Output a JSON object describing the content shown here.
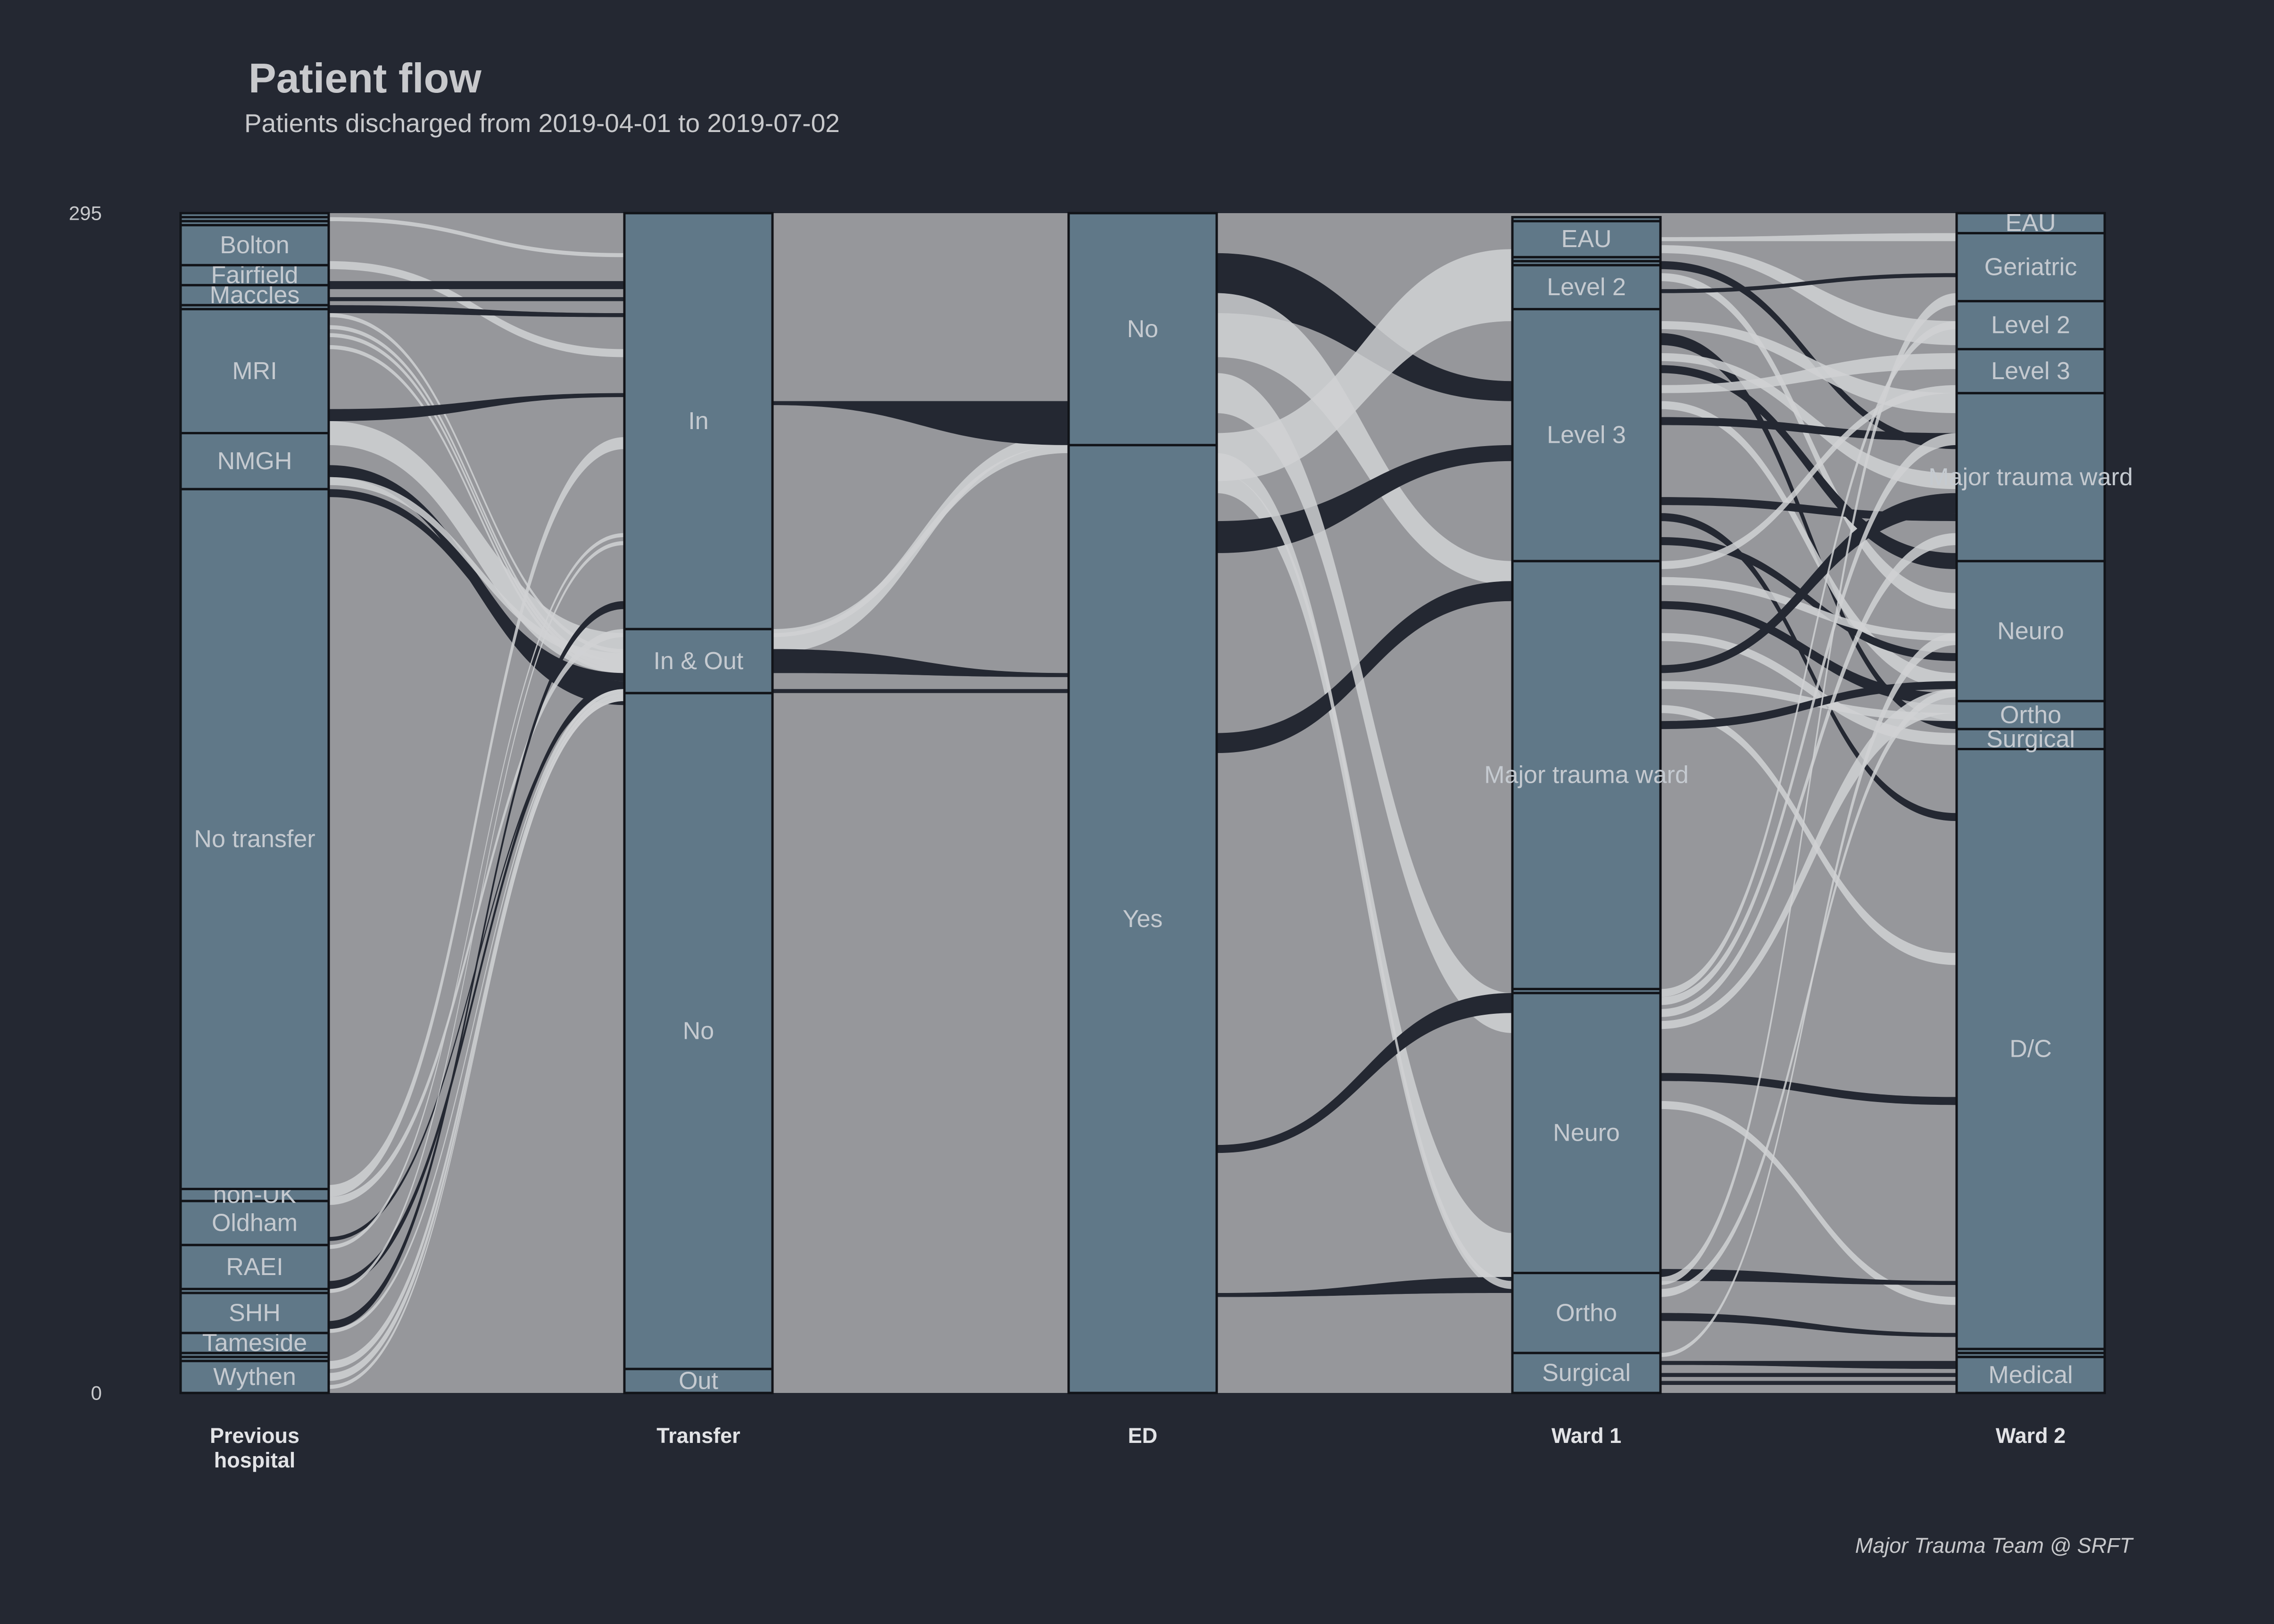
{
  "title": "Patient flow",
  "subtitle": "Patients discharged from 2019-04-01 to 2019-07-02",
  "caption": "Major Trauma Team @ SRFT",
  "colors": {
    "background": "#242832",
    "panel": "#96979b",
    "node_fill": "#607888",
    "node_stroke": "#111318",
    "flow_light": "#d0d1d4",
    "flow_dark": "#242832",
    "text": "#c8c9cc"
  },
  "chart_data": {
    "type": "alluvial",
    "ylim": [
      0,
      295
    ],
    "y_ticks": [
      "0",
      "295"
    ],
    "axes": [
      {
        "key": "prev",
        "label_lines": [
          "Previous",
          "hospital"
        ],
        "strata": [
          {
            "name": "Wythen",
            "value": 8
          },
          {
            "name": "",
            "value": 1
          },
          {
            "name": "",
            "value": 1
          },
          {
            "name": "Tameside",
            "value": 5
          },
          {
            "name": "SHH",
            "value": 10
          },
          {
            "name": "",
            "value": 1
          },
          {
            "name": "RAEI",
            "value": 11
          },
          {
            "name": "Oldham",
            "value": 11
          },
          {
            "name": "non-UK",
            "value": 3
          },
          {
            "name": "No transfer",
            "value": 175
          },
          {
            "name": "NMGH",
            "value": 14
          },
          {
            "name": "MRI",
            "value": 31
          },
          {
            "name": "",
            "value": 1
          },
          {
            "name": "Maccles",
            "value": 5
          },
          {
            "name": "Fairfield",
            "value": 5
          },
          {
            "name": "Bolton",
            "value": 10
          },
          {
            "name": "",
            "value": 1
          },
          {
            "name": "",
            "value": 1
          },
          {
            "name": "",
            "value": 1
          }
        ]
      },
      {
        "key": "transfer",
        "label_lines": [
          "Transfer"
        ],
        "strata": [
          {
            "name": "Out",
            "value": 6
          },
          {
            "name": "No",
            "value": 169
          },
          {
            "name": "In & Out",
            "value": 16
          },
          {
            "name": "In",
            "value": 104
          }
        ]
      },
      {
        "key": "ed",
        "label_lines": [
          "ED"
        ],
        "strata": [
          {
            "name": "Yes",
            "value": 237
          },
          {
            "name": "No",
            "value": 58
          }
        ]
      },
      {
        "key": "ward1",
        "label_lines": [
          "Ward 1"
        ],
        "strata": [
          {
            "name": "Surgical",
            "value": 10
          },
          {
            "name": "Ortho",
            "value": 20
          },
          {
            "name": "Neuro",
            "value": 70
          },
          {
            "name": "",
            "value": 1
          },
          {
            "name": "Major trauma ward",
            "value": 107
          },
          {
            "name": "Level 3",
            "value": 63
          },
          {
            "name": "Level 2",
            "value": 11
          },
          {
            "name": "",
            "value": 1
          },
          {
            "name": "",
            "value": 1
          },
          {
            "name": "EAU",
            "value": 9
          },
          {
            "name": "",
            "value": 1
          }
        ]
      },
      {
        "key": "ward2",
        "label_lines": [
          "Ward 2"
        ],
        "strata": [
          {
            "name": "Medical",
            "value": 9
          },
          {
            "name": "",
            "value": 1
          },
          {
            "name": "",
            "value": 1
          },
          {
            "name": "D/C",
            "value": 150
          },
          {
            "name": "Surgical",
            "value": 5
          },
          {
            "name": "Ortho",
            "value": 7
          },
          {
            "name": "Neuro",
            "value": 35
          },
          {
            "name": "Major trauma ward",
            "value": 42
          },
          {
            "name": "Level 3",
            "value": 11
          },
          {
            "name": "Level 2",
            "value": 12
          },
          {
            "name": "Geriatric",
            "value": 17
          },
          {
            "name": "EAU",
            "value": 5
          }
        ]
      }
    ],
    "flows": [
      {
        "axis": 0,
        "from_y": [
          294,
          293
        ],
        "to_y": [
          285,
          284
        ],
        "color": "light"
      },
      {
        "axis": 0,
        "from_y": [
          283,
          281
        ],
        "to_y": [
          261,
          259
        ],
        "color": "light"
      },
      {
        "axis": 0,
        "from_y": [
          278,
          276
        ],
        "to_y": [
          278,
          276
        ],
        "color": "dark"
      },
      {
        "axis": 0,
        "from_y": [
          274,
          273
        ],
        "to_y": [
          274,
          273
        ],
        "color": "dark"
      },
      {
        "axis": 0,
        "from_y": [
          272,
          270
        ],
        "to_y": [
          270,
          269
        ],
        "color": "dark"
      },
      {
        "axis": 0,
        "from_y": [
          270,
          269
        ],
        "to_y": [
          186,
          185
        ],
        "color": "light"
      },
      {
        "axis": 0,
        "from_y": [
          267,
          266
        ],
        "to_y": [
          183,
          182
        ],
        "color": "light"
      },
      {
        "axis": 0,
        "from_y": [
          265,
          264
        ],
        "to_y": [
          182,
          181
        ],
        "color": "light"
      },
      {
        "axis": 0,
        "from_y": [
          262,
          261
        ],
        "to_y": [
          181,
          180
        ],
        "color": "light"
      },
      {
        "axis": 0,
        "from_y": [
          246,
          243
        ],
        "to_y": [
          250,
          249
        ],
        "color": "dark"
      },
      {
        "axis": 0,
        "from_y": [
          243,
          237
        ],
        "to_y": [
          190,
          180
        ],
        "color": "light"
      },
      {
        "axis": 0,
        "from_y": [
          232,
          229
        ],
        "to_y": [
          178,
          172
        ],
        "color": "dark"
      },
      {
        "axis": 0,
        "from_y": [
          229,
          227
        ],
        "to_y": [
          185,
          183
        ],
        "color": "light"
      },
      {
        "axis": 0,
        "from_y": [
          226,
          224
        ],
        "to_y": [
          180,
          178
        ],
        "color": "dark"
      },
      {
        "axis": 0,
        "from_y": [
          52,
          49
        ],
        "to_y": [
          239,
          236
        ],
        "color": "light"
      },
      {
        "axis": 0,
        "from_y": [
          49,
          47
        ],
        "to_y": [
          191,
          189
        ],
        "color": "light"
      },
      {
        "axis": 0,
        "from_y": [
          39,
          38
        ],
        "to_y": [
          176,
          175
        ],
        "color": "dark"
      },
      {
        "axis": 0,
        "from_y": [
          37,
          36
        ],
        "to_y": [
          215,
          214
        ],
        "color": "light"
      },
      {
        "axis": 0,
        "from_y": [
          28,
          26
        ],
        "to_y": [
          178,
          176
        ],
        "color": "dark"
      },
      {
        "axis": 0,
        "from_y": [
          26,
          25
        ],
        "to_y": [
          213,
          212
        ],
        "color": "light"
      },
      {
        "axis": 0,
        "from_y": [
          18,
          16
        ],
        "to_y": [
          198,
          196
        ],
        "color": "dark"
      },
      {
        "axis": 0,
        "from_y": [
          16,
          15
        ],
        "to_y": [
          176,
          175
        ],
        "color": "light"
      },
      {
        "axis": 0,
        "from_y": [
          8,
          6
        ],
        "to_y": [
          176,
          174
        ],
        "color": "light"
      },
      {
        "axis": 0,
        "from_y": [
          5,
          3
        ],
        "to_y": [
          175,
          173
        ],
        "color": "light"
      },
      {
        "axis": 0,
        "from_y": [
          2,
          1
        ],
        "to_y": [
          174,
          173
        ],
        "color": "light"
      },
      {
        "axis": 1,
        "from_y": [
          191,
          189
        ],
        "to_y": [
          237,
          235
        ],
        "color": "light"
      },
      {
        "axis": 1,
        "from_y": [
          190,
          185
        ],
        "to_y": [
          240,
          237
        ],
        "color": "light"
      },
      {
        "axis": 1,
        "from_y": [
          186,
          180
        ],
        "to_y": [
          180,
          179
        ],
        "color": "dark"
      },
      {
        "axis": 1,
        "from_y": [
          176,
          175
        ],
        "to_y": [
          176,
          175
        ],
        "color": "dark"
      },
      {
        "axis": 1,
        "from_y": [
          248,
          247
        ],
        "to_y": [
          248,
          237
        ],
        "color": "dark"
      },
      {
        "axis": 2,
        "from_y": [
          285,
          270
        ],
        "to_y": [
          253,
          248
        ],
        "color": "dark"
      },
      {
        "axis": 2,
        "from_y": [
          275,
          259
        ],
        "to_y": [
          208,
          202
        ],
        "color": "light"
      },
      {
        "axis": 2,
        "from_y": [
          240,
          228
        ],
        "to_y": [
          286,
          268
        ],
        "color": "light"
      },
      {
        "axis": 2,
        "from_y": [
          230,
          225
        ],
        "to_y": [
          40,
          25
        ],
        "color": "light"
      },
      {
        "axis": 2,
        "from_y": [
          218,
          210
        ],
        "to_y": [
          237,
          233
        ],
        "color": "dark"
      },
      {
        "axis": 2,
        "from_y": [
          165,
          160
        ],
        "to_y": [
          203,
          198
        ],
        "color": "dark"
      },
      {
        "axis": 2,
        "from_y": [
          255,
          245
        ],
        "to_y": [
          100,
          90
        ],
        "color": "light"
      },
      {
        "axis": 2,
        "from_y": [
          62,
          60
        ],
        "to_y": [
          100,
          95
        ],
        "color": "dark"
      },
      {
        "axis": 2,
        "from_y": [
          25,
          24
        ],
        "to_y": [
          29,
          25
        ],
        "color": "dark"
      },
      {
        "axis": 2,
        "from_y": [
          235,
          230
        ],
        "to_y": [
          28,
          26
        ],
        "color": "light"
      },
      {
        "axis": 3,
        "from_y": [
          289,
          288
        ],
        "to_y": [
          290,
          288
        ],
        "color": "light"
      },
      {
        "axis": 3,
        "from_y": [
          287,
          285
        ],
        "to_y": [
          268,
          262
        ],
        "color": "light"
      },
      {
        "axis": 3,
        "from_y": [
          283,
          281
        ],
        "to_y": [
          238,
          236
        ],
        "color": "dark"
      },
      {
        "axis": 3,
        "from_y": [
          280,
          278
        ],
        "to_y": [
          200,
          196
        ],
        "color": "light"
      },
      {
        "axis": 3,
        "from_y": [
          276,
          275
        ],
        "to_y": [
          280,
          279
        ],
        "color": "dark"
      },
      {
        "axis": 3,
        "from_y": [
          268,
          266
        ],
        "to_y": [
          250,
          245
        ],
        "color": "light"
      },
      {
        "axis": 3,
        "from_y": [
          265,
          262
        ],
        "to_y": [
          168,
          166
        ],
        "color": "dark"
      },
      {
        "axis": 3,
        "from_y": [
          260,
          258
        ],
        "to_y": [
          230,
          226
        ],
        "color": "light"
      },
      {
        "axis": 3,
        "from_y": [
          257,
          255
        ],
        "to_y": [
          210,
          206
        ],
        "color": "dark"
      },
      {
        "axis": 3,
        "from_y": [
          252,
          250
        ],
        "to_y": [
          260,
          256
        ],
        "color": "light"
      },
      {
        "axis": 3,
        "from_y": [
          248,
          246
        ],
        "to_y": [
          180,
          176
        ],
        "color": "light"
      },
      {
        "axis": 3,
        "from_y": [
          244,
          242
        ],
        "to_y": [
          240,
          238
        ],
        "color": "dark"
      },
      {
        "axis": 3,
        "from_y": [
          224,
          222
        ],
        "to_y": [
          220,
          218
        ],
        "color": "dark"
      },
      {
        "axis": 3,
        "from_y": [
          220,
          218
        ],
        "to_y": [
          145,
          143
        ],
        "color": "dark"
      },
      {
        "axis": 3,
        "from_y": [
          214,
          212
        ],
        "to_y": [
          185,
          183
        ],
        "color": "dark"
      },
      {
        "axis": 3,
        "from_y": [
          208,
          206
        ],
        "to_y": [
          252,
          250
        ],
        "color": "light"
      },
      {
        "axis": 3,
        "from_y": [
          204,
          202
        ],
        "to_y": [
          190,
          188
        ],
        "color": "light"
      },
      {
        "axis": 3,
        "from_y": [
          198,
          196
        ],
        "to_y": [
          175,
          172
        ],
        "color": "dark"
      },
      {
        "axis": 3,
        "from_y": [
          190,
          188
        ],
        "to_y": [
          165,
          162
        ],
        "color": "light"
      },
      {
        "axis": 3,
        "from_y": [
          182,
          180
        ],
        "to_y": [
          225,
          220
        ],
        "color": "dark"
      },
      {
        "axis": 3,
        "from_y": [
          178,
          176
        ],
        "to_y": [
          170,
          168
        ],
        "color": "light"
      },
      {
        "axis": 3,
        "from_y": [
          172,
          170
        ],
        "to_y": [
          110,
          107
        ],
        "color": "light"
      },
      {
        "axis": 3,
        "from_y": [
          168,
          166
        ],
        "to_y": [
          178,
          176
        ],
        "color": "dark"
      },
      {
        "axis": 3,
        "from_y": [
          101,
          99
        ],
        "to_y": [
          268,
          266
        ],
        "color": "light"
      },
      {
        "axis": 3,
        "from_y": [
          99,
          97
        ],
        "to_y": [
          240,
          237
        ],
        "color": "light"
      },
      {
        "axis": 3,
        "from_y": [
          96,
          94
        ],
        "to_y": [
          215,
          212
        ],
        "color": "light"
      },
      {
        "axis": 3,
        "from_y": [
          93,
          91
        ],
        "to_y": [
          176,
          170
        ],
        "color": "light"
      },
      {
        "axis": 3,
        "from_y": [
          80,
          78
        ],
        "to_y": [
          74,
          72
        ],
        "color": "dark"
      },
      {
        "axis": 3,
        "from_y": [
          73,
          71
        ],
        "to_y": [
          24,
          22
        ],
        "color": "light"
      },
      {
        "axis": 3,
        "from_y": [
          31,
          28
        ],
        "to_y": [
          28,
          27
        ],
        "color": "dark"
      },
      {
        "axis": 3,
        "from_y": [
          29,
          27
        ],
        "to_y": [
          275,
          272
        ],
        "color": "light"
      },
      {
        "axis": 3,
        "from_y": [
          26,
          24
        ],
        "to_y": [
          176,
          174
        ],
        "color": "light"
      },
      {
        "axis": 3,
        "from_y": [
          20,
          18
        ],
        "to_y": [
          15,
          14
        ],
        "color": "dark"
      },
      {
        "axis": 3,
        "from_y": [
          10,
          9
        ],
        "to_y": [
          190,
          187
        ],
        "color": "light"
      },
      {
        "axis": 3,
        "from_y": [
          8,
          7
        ],
        "to_y": [
          8,
          6
        ],
        "color": "dark"
      },
      {
        "axis": 3,
        "from_y": [
          5,
          4
        ],
        "to_y": [
          5,
          4
        ],
        "color": "dark"
      },
      {
        "axis": 3,
        "from_y": [
          3,
          2
        ],
        "to_y": [
          3,
          2
        ],
        "color": "dark"
      }
    ]
  }
}
